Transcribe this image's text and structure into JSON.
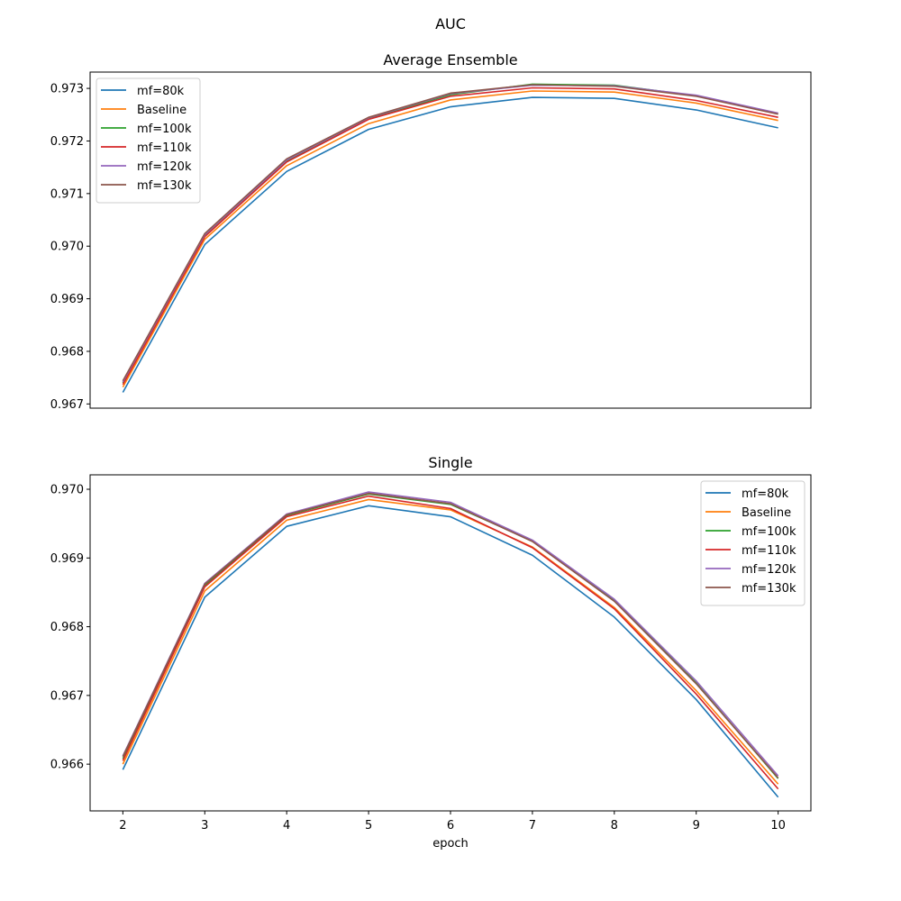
{
  "figure_title": "AUC",
  "chart_data": [
    {
      "type": "line",
      "title": "Average Ensemble",
      "xlabel": "",
      "ylabel": "",
      "x": [
        2,
        3,
        4,
        5,
        6,
        7,
        8,
        9,
        10
      ],
      "show_xticks": false,
      "ylim": [
        0.96692,
        0.97331
      ],
      "yticks": [
        0.967,
        0.968,
        0.969,
        0.97,
        0.971,
        0.972,
        0.973
      ],
      "ytick_labels": [
        "0.967",
        "0.968",
        "0.969",
        "0.970",
        "0.971",
        "0.972",
        "0.973"
      ],
      "legend_position": "upper left",
      "grid": false,
      "series": [
        {
          "name": "mf=80k",
          "color": "#1f77b4",
          "values": [
            0.96722,
            0.97003,
            0.97142,
            0.97222,
            0.97265,
            0.97283,
            0.97281,
            0.97259,
            0.97225
          ]
        },
        {
          "name": "Baseline",
          "color": "#ff7f0e",
          "values": [
            0.96732,
            0.97013,
            0.97153,
            0.97233,
            0.97278,
            0.97295,
            0.97293,
            0.97272,
            0.97239
          ]
        },
        {
          "name": "mf=100k",
          "color": "#2ca02c",
          "values": [
            0.9674,
            0.9702,
            0.97162,
            0.97242,
            0.97288,
            0.97308,
            0.97306,
            0.97286,
            0.97252
          ]
        },
        {
          "name": "mf=110k",
          "color": "#d62728",
          "values": [
            0.96737,
            0.97018,
            0.9716,
            0.97241,
            0.97285,
            0.97301,
            0.97299,
            0.97277,
            0.97245
          ]
        },
        {
          "name": "mf=120k",
          "color": "#9467bd",
          "values": [
            0.96742,
            0.97022,
            0.97164,
            0.97244,
            0.9729,
            0.97306,
            0.97305,
            0.97287,
            0.97253
          ]
        },
        {
          "name": "mf=130k",
          "color": "#8c564b",
          "values": [
            0.96744,
            0.97024,
            0.97166,
            0.97245,
            0.97291,
            0.97307,
            0.97304,
            0.97285,
            0.97251
          ]
        }
      ]
    },
    {
      "type": "line",
      "title": "Single",
      "xlabel": "epoch",
      "ylabel": "",
      "x": [
        2,
        3,
        4,
        5,
        6,
        7,
        8,
        9,
        10
      ],
      "show_xticks": true,
      "xtick_labels": [
        "2",
        "3",
        "4",
        "5",
        "6",
        "7",
        "8",
        "9",
        "10"
      ],
      "ylim": [
        0.96532,
        0.97021
      ],
      "yticks": [
        0.966,
        0.967,
        0.968,
        0.969,
        0.97
      ],
      "ytick_labels": [
        "0.966",
        "0.967",
        "0.968",
        "0.969",
        "0.970"
      ],
      "legend_position": "upper right",
      "grid": false,
      "series": [
        {
          "name": "mf=80k",
          "color": "#1f77b4",
          "values": [
            0.96592,
            0.96843,
            0.96946,
            0.96976,
            0.9696,
            0.96904,
            0.96814,
            0.96694,
            0.96552
          ]
        },
        {
          "name": "Baseline",
          "color": "#ff7f0e",
          "values": [
            0.966,
            0.96852,
            0.96955,
            0.96985,
            0.9697,
            0.96916,
            0.96828,
            0.96707,
            0.96571
          ]
        },
        {
          "name": "mf=100k",
          "color": "#2ca02c",
          "values": [
            0.96608,
            0.9686,
            0.96962,
            0.96993,
            0.96978,
            0.96925,
            0.96838,
            0.96718,
            0.96579
          ]
        },
        {
          "name": "mf=110k",
          "color": "#d62728",
          "values": [
            0.96605,
            0.96858,
            0.9696,
            0.9699,
            0.96972,
            0.96915,
            0.96826,
            0.96702,
            0.96564
          ]
        },
        {
          "name": "mf=120k",
          "color": "#9467bd",
          "values": [
            0.96612,
            0.96863,
            0.96964,
            0.96996,
            0.96981,
            0.96926,
            0.9684,
            0.96721,
            0.96583
          ]
        },
        {
          "name": "mf=130k",
          "color": "#8c564b",
          "values": [
            0.96611,
            0.96862,
            0.96963,
            0.96994,
            0.96979,
            0.96924,
            0.96837,
            0.96717,
            0.9658
          ]
        }
      ]
    }
  ]
}
